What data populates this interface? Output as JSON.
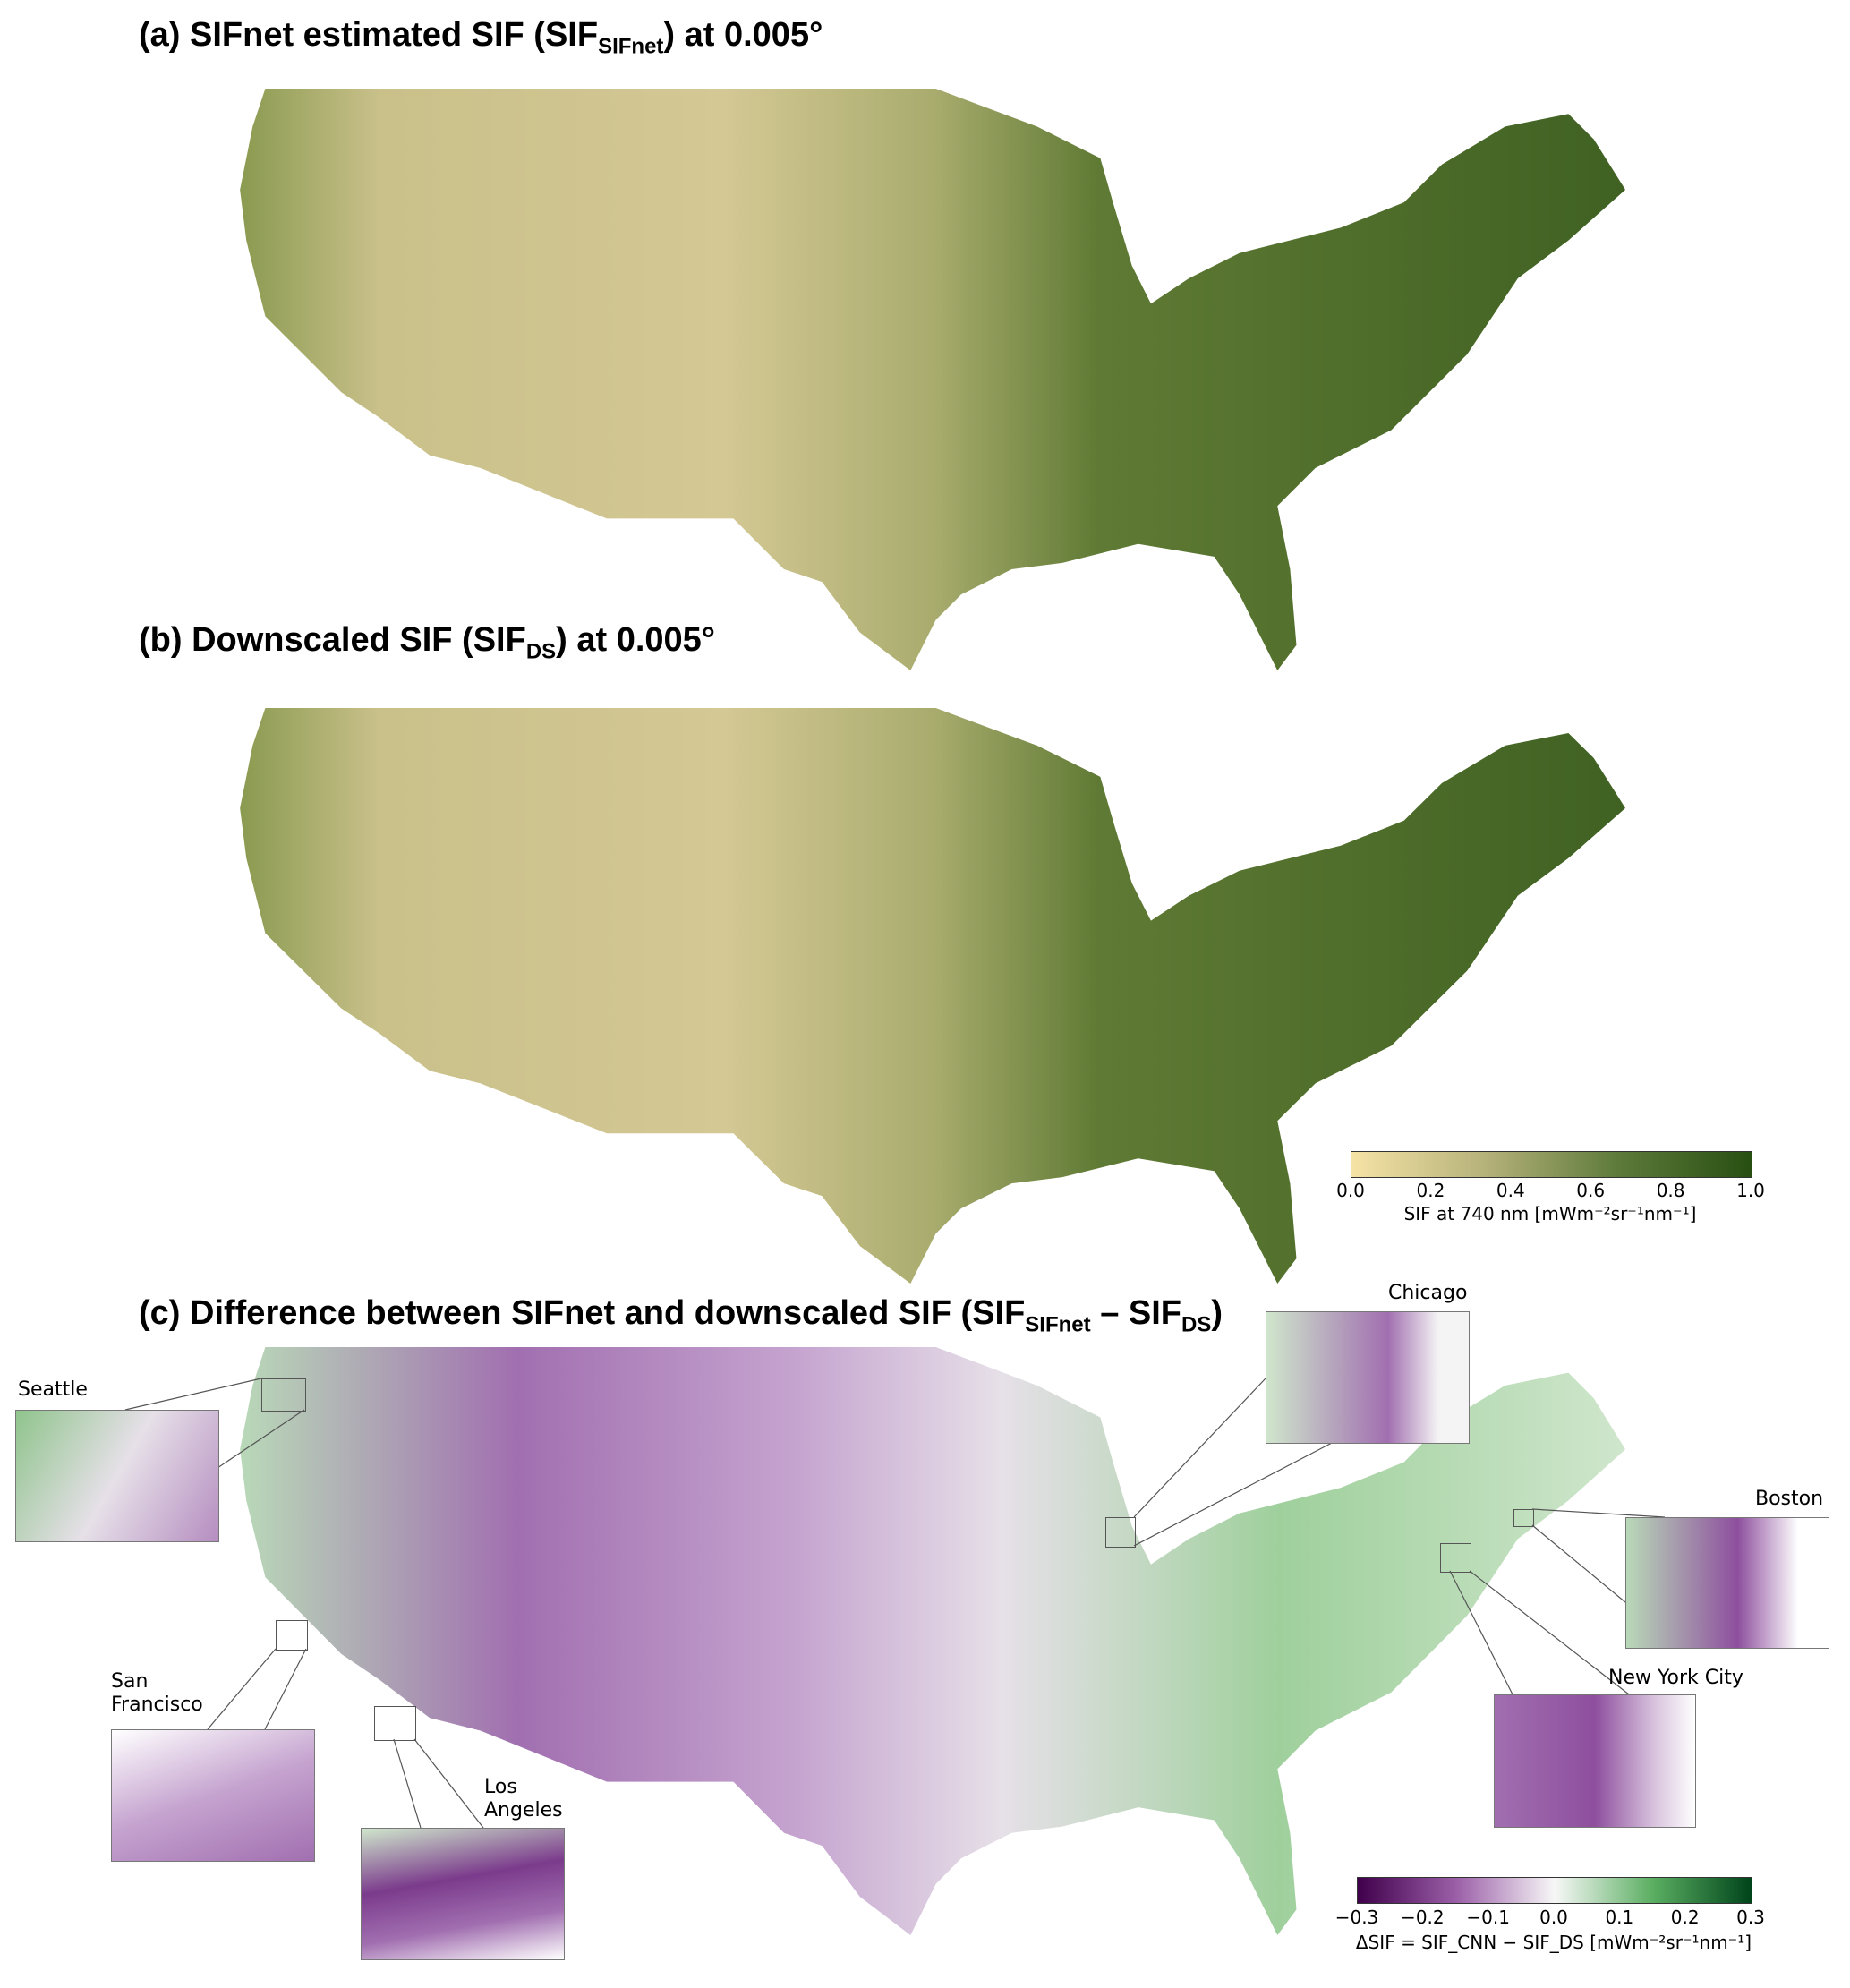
{
  "panel_a": {
    "title_prefix": "(a) SIFnet estimated SIF (SIF",
    "title_sub": "SIFnet",
    "title_suffix": ") at 0.005°"
  },
  "panel_b": {
    "title_prefix": "(b) Downscaled SIF (SIF",
    "title_sub": "DS",
    "title_suffix": ") at 0.005°"
  },
  "panel_c": {
    "title_prefix": "(c) Difference between SIFnet and downscaled SIF (SIF",
    "title_sub1": "SIFnet",
    "title_mid": " – SIF",
    "title_sub2": "DS",
    "title_suffix": ")"
  },
  "colorbar_sif": {
    "ticks": [
      "0.0",
      "0.2",
      "0.4",
      "0.6",
      "0.8",
      "1.0"
    ],
    "label": "SIF at 740 nm [mWm⁻²sr⁻¹nm⁻¹]",
    "colors": [
      "#f6e3a6",
      "#b5b27a",
      "#5d7a3a",
      "#284f12"
    ]
  },
  "colorbar_diff": {
    "ticks": [
      "−0.3",
      "−0.2",
      "−0.1",
      "0.0",
      "0.1",
      "0.2",
      "0.3"
    ],
    "label": "ΔSIF = SIF_CNN − SIF_DS [mWm⁻²sr⁻¹nm⁻¹]",
    "colors": [
      "#40004b",
      "#9b5fa8",
      "#f7f7f7",
      "#5aae61",
      "#00441b"
    ]
  },
  "cities": {
    "seattle": "Seattle",
    "chicago": "Chicago",
    "boston": "Boston",
    "nyc": "New York City",
    "sf1": "San",
    "sf2": "Francisco",
    "la1": "Los",
    "la2": "Angeles"
  }
}
